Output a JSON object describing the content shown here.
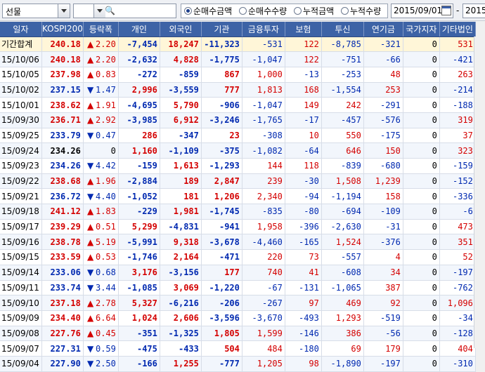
{
  "toolbar": {
    "market_select": "선물",
    "code_input": "",
    "radios": [
      {
        "label": "순매수금액",
        "checked": true
      },
      {
        "label": "순매수수량",
        "checked": false
      },
      {
        "label": "누적금액",
        "checked": false
      },
      {
        "label": "누적수량",
        "checked": false
      }
    ],
    "date_from": "2015/09/01",
    "date_sep": "-",
    "date_to": "2015"
  },
  "columns": [
    "일자",
    "KOSPI200",
    "등락폭",
    "개인",
    "외국인",
    "기관",
    "금융투자",
    "보험",
    "투신",
    "연기금",
    "국가지자",
    "기타법인"
  ],
  "colors": {
    "up": "#d40000",
    "down": "#0029b0",
    "header": "#3d63a6"
  },
  "rows": [
    {
      "date": "기간합계",
      "kospi": "240.18",
      "dir": "up",
      "chg": "2.20",
      "v": [
        "-7,454",
        "18,247",
        "-11,323",
        "-531",
        "122",
        "-8,785",
        "-321",
        "0",
        "531"
      ]
    },
    {
      "date": "15/10/06",
      "kospi": "240.18",
      "dir": "up",
      "chg": "2.20",
      "v": [
        "-2,632",
        "4,828",
        "-1,775",
        "-1,047",
        "122",
        "-751",
        "-66",
        "0",
        "-421"
      ]
    },
    {
      "date": "15/10/05",
      "kospi": "237.98",
      "dir": "up",
      "chg": "0.83",
      "v": [
        "-272",
        "-859",
        "867",
        "1,000",
        "-13",
        "-253",
        "48",
        "0",
        "263"
      ]
    },
    {
      "date": "15/10/02",
      "kospi": "237.15",
      "dir": "down",
      "chg": "1.47",
      "v": [
        "2,996",
        "-3,559",
        "777",
        "1,813",
        "168",
        "-1,554",
        "253",
        "0",
        "-214"
      ]
    },
    {
      "date": "15/10/01",
      "kospi": "238.62",
      "dir": "up",
      "chg": "1.91",
      "v": [
        "-4,695",
        "5,790",
        "-906",
        "-1,047",
        "149",
        "242",
        "-291",
        "0",
        "-188"
      ]
    },
    {
      "date": "15/09/30",
      "kospi": "236.71",
      "dir": "up",
      "chg": "2.92",
      "v": [
        "-3,985",
        "6,912",
        "-3,246",
        "-1,765",
        "-17",
        "-457",
        "-576",
        "0",
        "319"
      ]
    },
    {
      "date": "15/09/25",
      "kospi": "233.79",
      "dir": "down",
      "chg": "0.47",
      "v": [
        "286",
        "-347",
        "23",
        "-308",
        "10",
        "550",
        "-175",
        "0",
        "37"
      ]
    },
    {
      "date": "15/09/24",
      "kospi": "234.26",
      "dir": "flat",
      "chg": "0",
      "v": [
        "1,160",
        "-1,109",
        "-375",
        "-1,082",
        "-64",
        "646",
        "150",
        "0",
        "323"
      ]
    },
    {
      "date": "15/09/23",
      "kospi": "234.26",
      "dir": "down",
      "chg": "4.42",
      "v": [
        "-159",
        "1,613",
        "-1,293",
        "144",
        "118",
        "-839",
        "-680",
        "0",
        "-159"
      ]
    },
    {
      "date": "15/09/22",
      "kospi": "238.68",
      "dir": "up",
      "chg": "1.96",
      "v": [
        "-2,884",
        "189",
        "2,847",
        "239",
        "-30",
        "1,508",
        "1,239",
        "0",
        "-152"
      ]
    },
    {
      "date": "15/09/21",
      "kospi": "236.72",
      "dir": "down",
      "chg": "4.40",
      "v": [
        "-1,052",
        "181",
        "1,206",
        "2,340",
        "-94",
        "-1,194",
        "158",
        "0",
        "-336"
      ]
    },
    {
      "date": "15/09/18",
      "kospi": "241.12",
      "dir": "up",
      "chg": "1.83",
      "v": [
        "-229",
        "1,981",
        "-1,745",
        "-835",
        "-80",
        "-694",
        "-109",
        "0",
        "-6"
      ]
    },
    {
      "date": "15/09/17",
      "kospi": "239.29",
      "dir": "up",
      "chg": "0.51",
      "v": [
        "5,299",
        "-4,831",
        "-941",
        "1,958",
        "-396",
        "-2,630",
        "-31",
        "0",
        "473"
      ]
    },
    {
      "date": "15/09/16",
      "kospi": "238.78",
      "dir": "up",
      "chg": "5.19",
      "v": [
        "-5,991",
        "9,318",
        "-3,678",
        "-4,460",
        "-165",
        "1,524",
        "-376",
        "0",
        "351"
      ]
    },
    {
      "date": "15/09/15",
      "kospi": "233.59",
      "dir": "up",
      "chg": "0.53",
      "v": [
        "-1,746",
        "2,164",
        "-471",
        "220",
        "73",
        "-557",
        "4",
        "0",
        "52"
      ]
    },
    {
      "date": "15/09/14",
      "kospi": "233.06",
      "dir": "down",
      "chg": "0.68",
      "v": [
        "3,176",
        "-3,156",
        "177",
        "740",
        "41",
        "-608",
        "34",
        "0",
        "-197"
      ]
    },
    {
      "date": "15/09/11",
      "kospi": "233.74",
      "dir": "down",
      "chg": "3.44",
      "v": [
        "-1,085",
        "3,069",
        "-1,220",
        "-67",
        "-131",
        "-1,065",
        "387",
        "0",
        "-762"
      ]
    },
    {
      "date": "15/09/10",
      "kospi": "237.18",
      "dir": "up",
      "chg": "2.78",
      "v": [
        "5,327",
        "-6,216",
        "-206",
        "-267",
        "97",
        "469",
        "92",
        "0",
        "1,096"
      ]
    },
    {
      "date": "15/09/09",
      "kospi": "234.40",
      "dir": "up",
      "chg": "6.64",
      "v": [
        "1,024",
        "2,606",
        "-3,596",
        "-3,670",
        "-493",
        "1,293",
        "-519",
        "0",
        "-34"
      ]
    },
    {
      "date": "15/09/08",
      "kospi": "227.76",
      "dir": "up",
      "chg": "0.45",
      "v": [
        "-351",
        "-1,325",
        "1,805",
        "1,599",
        "-146",
        "386",
        "-56",
        "0",
        "-128"
      ]
    },
    {
      "date": "15/09/07",
      "kospi": "227.31",
      "dir": "down",
      "chg": "0.59",
      "v": [
        "-475",
        "-433",
        "504",
        "484",
        "-180",
        "69",
        "179",
        "0",
        "404"
      ]
    },
    {
      "date": "15/09/04",
      "kospi": "227.90",
      "dir": "down",
      "chg": "2.50",
      "v": [
        "-166",
        "1,255",
        "-777",
        "1,205",
        "98",
        "-1,890",
        "-197",
        "0",
        "-310"
      ]
    }
  ]
}
